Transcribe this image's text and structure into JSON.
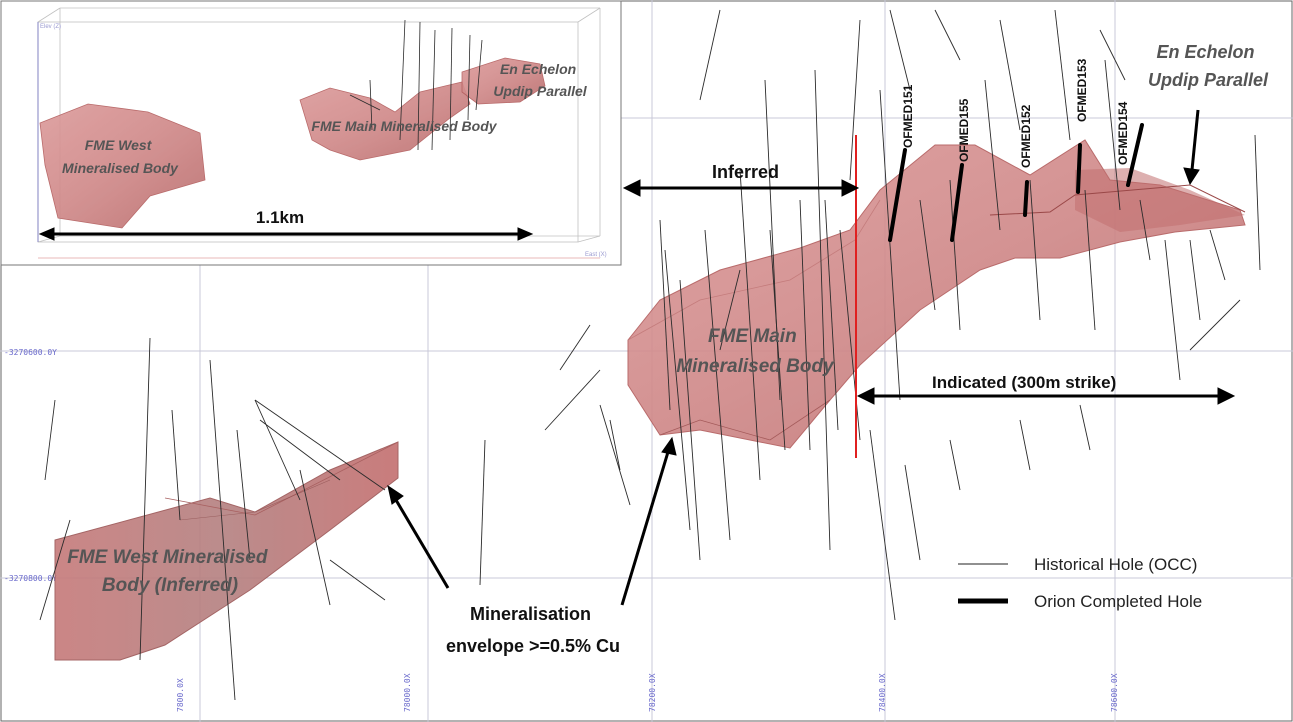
{
  "main": {
    "bodies": {
      "west": "FME West Mineralised\nBody (Inferred)",
      "main": "FME Main\nMineralised Body",
      "en_echelon": "En Echelon\nUpdip Parallel"
    },
    "labels": {
      "inferred": "Inferred",
      "indicated": "Indicated (300m strike)",
      "envelope": "Mineralisation\nenvelope >=0.5% Cu"
    },
    "holes": [
      "OFMED151",
      "OFMED155",
      "OFMED152",
      "OFMED153",
      "OFMED154"
    ],
    "grid": {
      "y_labels": [
        "-3270600.0Y",
        "-3270800.0Y"
      ],
      "x_labels": [
        "7800.0X",
        "78000.0X",
        "78200.0X",
        "78400.0X",
        "78600.0X"
      ]
    }
  },
  "inset": {
    "scale": "1.1km",
    "bodies": {
      "west": "FME West\nMineralised Body",
      "main": "FME Main Mineralised Body",
      "en_echelon": "En Echelon\nUpdip Parallel"
    },
    "axis_labels": [
      "Elev (Z)",
      "East (X)"
    ]
  },
  "legend": {
    "items": [
      {
        "label": "Historical Hole (OCC)",
        "style": "thin"
      },
      {
        "label": "Orion Completed Hole",
        "style": "thick"
      }
    ]
  },
  "colors": {
    "body_fill": "#d98d8d",
    "body_edge": "#b25c5c",
    "cut_line": "#e02020",
    "grid": "#c8c8d8",
    "text_gray": "#555555"
  }
}
